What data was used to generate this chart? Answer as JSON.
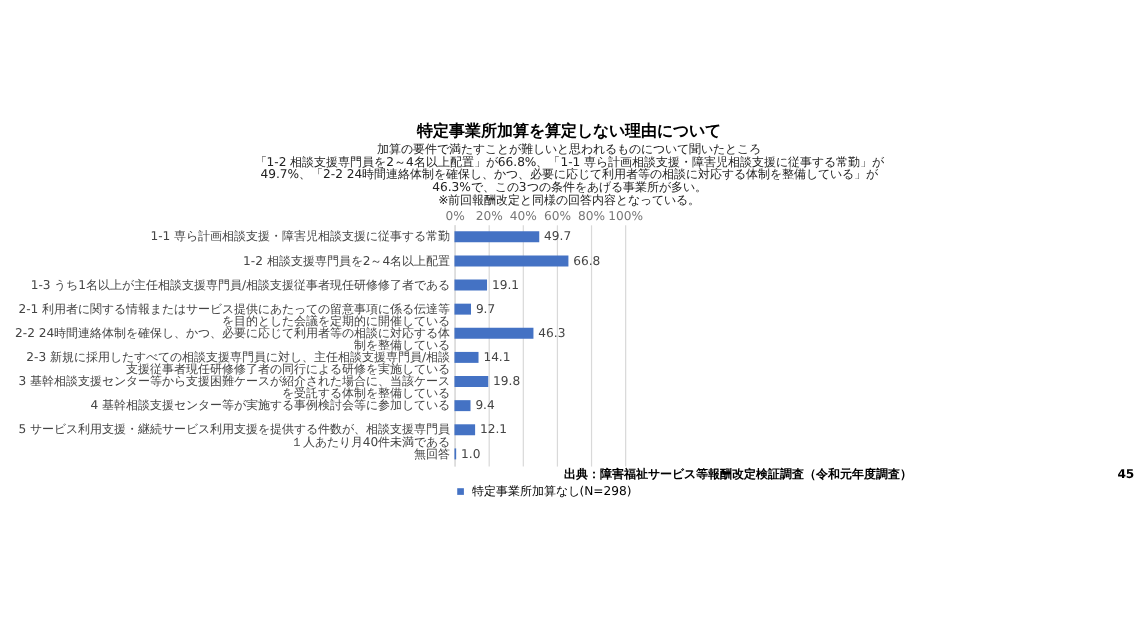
{
  "chart_data": {
    "type": "bar",
    "orientation": "horizontal",
    "title": "特定事業所加算を算定しない理由について",
    "subtitle": [
      "加算の要件で満たすことが難しいと思われるものについて聞いたところ",
      "「1-2  相談支援専門員を2～4名以上配置」が66.8%、「1-1  専ら計画相談支援・障害児相談支援に従事する常勤」が",
      "49.7%、「2-2  24時間連絡体制を確保し、かつ、必要に応じて利用者等の相談に対応する体制を整備している」が",
      "46.3%で、この3つの条件をあげる事業所が多い。",
      "※前回報酬改定と同様の回答内容となっている。"
    ],
    "categories": [
      "1-1  専ら計画相談支援・障害児相談支援に従事する常勤",
      "1-2  相談支援専門員を2～4名以上配置",
      "1-3  うち1名以上が主任相談支援専門員/相談支援従事者現任研修修了者である",
      "2-1  利用者に関する情報またはサービス提供にあたっての留意事項に係る伝達等を目的とした会議を定期的に開催している",
      "2-2  24時間連絡体制を確保し、かつ、必要に応じて利用者等の相談に対応する体制を整備している",
      "2-3  新規に採用したすべての相談支援専門員に対し、主任相談支援専門員/相談支援従事者現任研修修了者の同行による研修を実施している",
      "3  基幹相談支援センター等から支援困難ケースが紹介された場合に、当該ケースを受託する体制を整備している",
      "4  基幹相談支援センター等が実施する事例検討会等に参加している",
      "5  サービス利用支援・継続サービス利用支援を提供する件数が、相談支援専門員１人あたり月40件未満である",
      "無回答"
    ],
    "series": [
      {
        "name": "特定事業所加算なし(N=298)",
        "color": "#4472c4",
        "values": [
          49.7,
          66.8,
          19.1,
          9.7,
          46.3,
          14.1,
          19.8,
          9.4,
          12.1,
          1.0
        ]
      }
    ],
    "xlim": [
      0,
      100
    ],
    "xticks": [
      {
        "value": 0,
        "label": "0%"
      },
      {
        "value": 20,
        "label": "20%"
      },
      {
        "value": 40,
        "label": "40%"
      },
      {
        "value": 60,
        "label": "60%"
      },
      {
        "value": 80,
        "label": "80%"
      },
      {
        "value": 100,
        "label": "100%"
      }
    ],
    "value_labels": [
      "49.7",
      "66.8",
      "19.1",
      "9.7",
      "46.3",
      "14.1",
      "19.8",
      "9.4",
      "12.1",
      "1.0"
    ],
    "grid": "x",
    "legend": "bottom",
    "annotations": [
      "出典：障害福祉サービス等報酬改定検証調査（令和元年度調査）",
      "45"
    ]
  }
}
